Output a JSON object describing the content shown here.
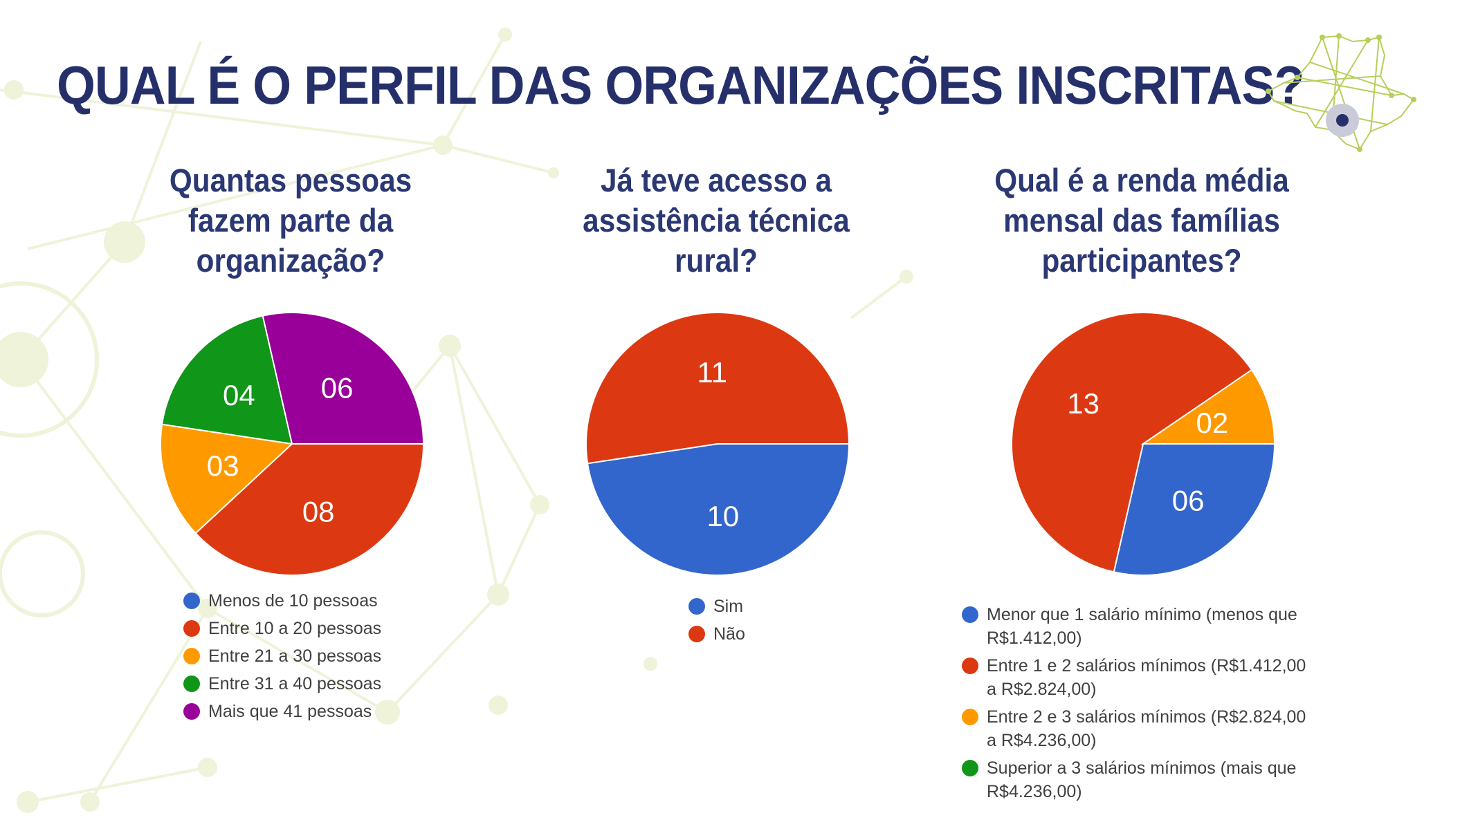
{
  "title": "QUAL É O PERFIL DAS ORGANIZAÇÕES INSCRITAS?",
  "colors": {
    "title": "#25306b",
    "question": "#2b3874",
    "blue": "#3366cc",
    "red": "#dc3912",
    "orange": "#ff9900",
    "green": "#109618",
    "purple": "#990099",
    "network": "#eef3d9"
  },
  "chart_data": [
    {
      "type": "pie",
      "title": "Quantas pessoas fazem parte da organização?",
      "categories": [
        "Menos de 10 pessoas",
        "Entre 10 a 20 pessoas",
        "Entre 21 a 30 pessoas",
        "Entre 31 a 40 pessoas",
        "Mais que 41 pessoas"
      ],
      "values": [
        0,
        8,
        3,
        4,
        6
      ],
      "data_labels": [
        "",
        "08",
        "03",
        "04",
        "06"
      ],
      "colors": [
        "#3366cc",
        "#dc3912",
        "#ff9900",
        "#109618",
        "#990099"
      ],
      "legend_position": "bottom"
    },
    {
      "type": "pie",
      "title": "Já teve acesso a assistência técnica rural?",
      "categories": [
        "Sim",
        "Não"
      ],
      "values": [
        10,
        11
      ],
      "data_labels": [
        "10",
        "11"
      ],
      "colors": [
        "#3366cc",
        "#dc3912"
      ],
      "legend_position": "bottom"
    },
    {
      "type": "pie",
      "title": "Qual é a renda média mensal das famílias participantes?",
      "categories": [
        "Menor que 1 salário mínimo (menos que R$1.412,00)",
        "Entre 1 e 2 salários mínimos (R$1.412,00 a R$2.824,00)",
        "Entre 2 e 3 salários mínimos (R$2.824,00 a R$4.236,00)",
        "Superior a 3 salários mínimos (mais que R$4.236,00)"
      ],
      "values": [
        6,
        13,
        2,
        0
      ],
      "data_labels": [
        "06",
        "13",
        "02",
        ""
      ],
      "colors": [
        "#3366cc",
        "#dc3912",
        "#ff9900",
        "#109618"
      ],
      "legend_position": "bottom"
    }
  ]
}
